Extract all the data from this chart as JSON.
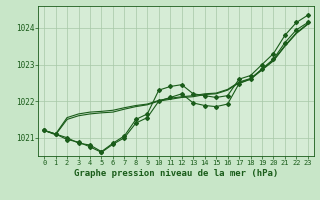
{
  "background_color": "#c8e6c8",
  "plot_bg_color": "#d6ecd6",
  "grid_color": "#a8c8a8",
  "line_color": "#1a5c1a",
  "xlabel": "Graphe pression niveau de la mer (hPa)",
  "xlabel_fontsize": 6.5,
  "ylim": [
    1020.5,
    1024.6
  ],
  "xlim": [
    -0.5,
    23.5
  ],
  "yticks": [
    1021,
    1022,
    1023,
    1024
  ],
  "xticks": [
    0,
    1,
    2,
    3,
    4,
    5,
    6,
    7,
    8,
    9,
    10,
    11,
    12,
    13,
    14,
    15,
    16,
    17,
    18,
    19,
    20,
    21,
    22,
    23
  ],
  "series": [
    {
      "x": [
        0,
        1,
        2,
        3,
        4,
        5,
        6,
        7,
        8,
        9,
        10,
        11,
        12,
        13,
        14,
        15,
        16,
        17,
        18,
        19,
        20,
        21,
        22,
        23
      ],
      "y": [
        1021.2,
        1021.1,
        1021.0,
        1020.85,
        1020.8,
        1020.62,
        1020.85,
        1021.05,
        1021.5,
        1021.65,
        1022.3,
        1022.4,
        1022.45,
        1022.2,
        1022.15,
        1022.1,
        1022.15,
        1022.6,
        1022.7,
        1023.0,
        1023.3,
        1023.8,
        1024.15,
        1024.35
      ],
      "marker": true
    },
    {
      "x": [
        0,
        1,
        2,
        3,
        4,
        5,
        6,
        7,
        8,
        9,
        10,
        11,
        12,
        13,
        14,
        15,
        16,
        17,
        18,
        19,
        20,
        21,
        22,
        23
      ],
      "y": [
        1021.2,
        1021.1,
        1020.95,
        1020.88,
        1020.75,
        1020.6,
        1020.82,
        1021.0,
        1021.4,
        1021.55,
        1022.0,
        1022.1,
        1022.2,
        1021.95,
        1021.88,
        1021.85,
        1021.92,
        1022.48,
        1022.6,
        1022.88,
        1023.15,
        1023.6,
        1023.95,
        1024.15
      ],
      "marker": true
    },
    {
      "x": [
        0,
        1,
        2,
        3,
        4,
        5,
        6,
        7,
        8,
        9,
        10,
        11,
        12,
        13,
        14,
        15,
        16,
        17,
        18,
        19,
        20,
        21,
        22,
        23
      ],
      "y": [
        1021.2,
        1021.08,
        1021.5,
        1021.6,
        1021.65,
        1021.68,
        1021.7,
        1021.78,
        1021.85,
        1021.9,
        1022.0,
        1022.05,
        1022.1,
        1022.12,
        1022.18,
        1022.2,
        1022.3,
        1022.5,
        1022.6,
        1022.85,
        1023.1,
        1023.5,
        1023.85,
        1024.1
      ],
      "marker": false
    },
    {
      "x": [
        0,
        1,
        2,
        3,
        4,
        5,
        6,
        7,
        8,
        9,
        10,
        11,
        12,
        13,
        14,
        15,
        16,
        17,
        18,
        19,
        20,
        21,
        22,
        23
      ],
      "y": [
        1021.2,
        1021.1,
        1021.55,
        1021.65,
        1021.7,
        1021.72,
        1021.75,
        1021.82,
        1021.88,
        1021.92,
        1022.02,
        1022.08,
        1022.12,
        1022.15,
        1022.2,
        1022.22,
        1022.32,
        1022.52,
        1022.62,
        1022.87,
        1023.12,
        1023.52,
        1023.87,
        1024.12
      ],
      "marker": false
    }
  ]
}
